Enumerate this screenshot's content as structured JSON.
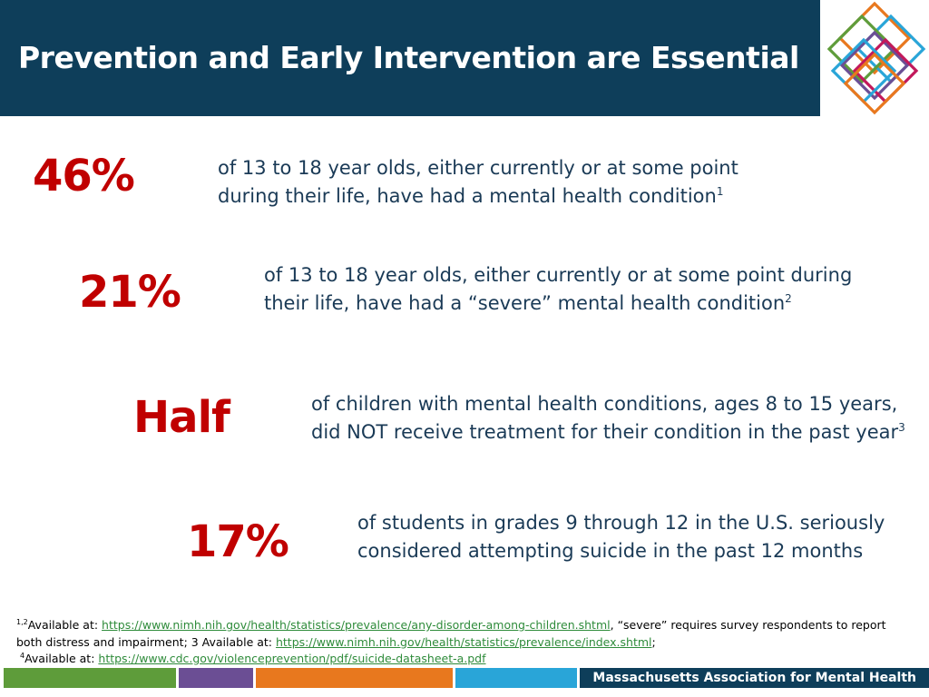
{
  "header": {
    "title": "Prevention and Early Intervention are Essential",
    "background_color": "#0e3e5a"
  },
  "logo": {
    "icon": "interlocking-diamonds-logo"
  },
  "stats": [
    {
      "value": "46%",
      "text": "of 13 to 18 year olds, either currently or at some point during their life, have had a mental health condition",
      "line1": "of 13 to 18 year olds, either currently or at some point",
      "line2": "during their life, have had a mental health condition",
      "ref": "1"
    },
    {
      "value": "21%",
      "line1": "of 13 to 18 year olds, either currently or at some point during",
      "line2": "their life, have had a “severe” mental health condition",
      "ref": "2"
    },
    {
      "value": "Half",
      "line1": "of children with mental  health conditions, ages 8 to 15 years,",
      "line2": "did NOT receive treatment for their condition in the past year",
      "ref": "3"
    },
    {
      "value": "17%",
      "line1": "of students in grades 9 through 12 in the U.S. seriously",
      "line2": "considered attempting suicide in the past 12 months",
      "ref": ""
    }
  ],
  "footnotes": {
    "ref_12": "1,2",
    "available_at_1": "Available at: ",
    "link1": "https://www.nimh.nih.gov/health/statistics/prevalence/any-disorder-among-children.shtml",
    "note_severe": ",  “severe” requires survey respondents to report both distress and impairment;  3 Available at: ",
    "link2": "https://www.nimh.nih.gov/health/statistics/prevalence/index.shtml",
    "semicolon": ";",
    "ref_4": "4",
    "available_at_4": "Available at: ",
    "link3": "https://www.cdc.gov/violenceprevention/pdf/suicide-datasheet-a.pdf"
  },
  "footer": {
    "org_name": "Massachusetts Association for Mental Health",
    "bar_colors": [
      "#5e9c3a",
      "#6b4e94",
      "#e8781e",
      "#29a5d8"
    ],
    "org_bar_color": "#0e3e5a"
  },
  "colors": {
    "stat_red": "#c00000",
    "text_navy": "#1a3a56",
    "link_green": "#2e8b3a"
  }
}
